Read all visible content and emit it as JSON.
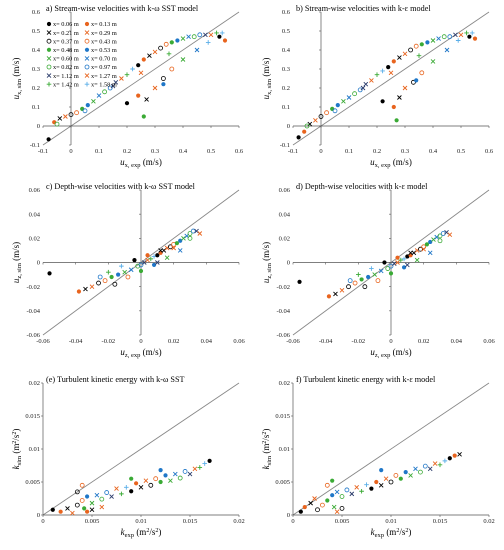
{
  "series_legend": [
    {
      "label": "x= 0.06 m",
      "marker": "dot",
      "color": "#000000"
    },
    {
      "label": "x= 0.13 m",
      "marker": "dot",
      "color": "#e8641e"
    },
    {
      "label": "x= 0.21 m",
      "marker": "x",
      "color": "#000000"
    },
    {
      "label": "x= 0.29 m",
      "marker": "x",
      "color": "#e8641e"
    },
    {
      "label": "x= 0.37 m",
      "marker": "ring",
      "color": "#000000"
    },
    {
      "label": "x= 0.43 m",
      "marker": "ring",
      "color": "#e8641e"
    },
    {
      "label": "x= 0.48 m",
      "marker": "dot",
      "color": "#3aaa35"
    },
    {
      "label": "x= 0.53 m",
      "marker": "dot",
      "color": "#1f77c8"
    },
    {
      "label": "x= 0.60 m",
      "marker": "x",
      "color": "#3aaa35"
    },
    {
      "label": "x= 0.70 m",
      "marker": "x",
      "color": "#1f77c8"
    },
    {
      "label": "x= 0.82 m",
      "marker": "ring",
      "color": "#3aaa35"
    },
    {
      "label": "x= 0.97 m",
      "marker": "ring",
      "color": "#1f77c8"
    },
    {
      "label": "x= 1.12 m",
      "marker": "x",
      "color": "#2a3b6b"
    },
    {
      "label": "x= 1.27 m",
      "marker": "x",
      "color": "#e8641e"
    },
    {
      "label": "x= 1.42 m",
      "marker": "plus",
      "color": "#3aaa35"
    },
    {
      "label": "x= 1.58 m",
      "marker": "plus",
      "color": "#5aaee8"
    }
  ],
  "chart_data": [
    {
      "type": "scatter",
      "title": "a) Stream-wise velocities with k-ω SST model",
      "xlabel": "ux, exp (m/s)",
      "ylabel": "ux, sim (m/s)",
      "xlim": [
        -0.1,
        0.6
      ],
      "ylim": [
        -0.1,
        0.6
      ],
      "xticks": [
        "-0.1",
        "0",
        "0.1",
        "0.2",
        "0.3",
        "0.4",
        "0.5",
        "0.6"
      ],
      "yticks": [
        "-0.1",
        "0",
        "0.1",
        "0.2",
        "0.3",
        "0.4",
        "0.5",
        "0.6"
      ],
      "reference_line": "1:1",
      "points": [
        [
          -0.08,
          -0.07
        ],
        [
          -0.06,
          0.02
        ],
        [
          -0.04,
          0.04
        ],
        [
          -0.02,
          0.05
        ],
        [
          0.0,
          0.06
        ],
        [
          0.02,
          0.07
        ],
        [
          0.04,
          0.09
        ],
        [
          0.06,
          0.11
        ],
        [
          0.08,
          0.13
        ],
        [
          0.1,
          0.16
        ],
        [
          0.12,
          0.18
        ],
        [
          0.14,
          0.2
        ],
        [
          0.16,
          0.23
        ],
        [
          0.18,
          0.25
        ],
        [
          0.2,
          0.27
        ],
        [
          0.22,
          0.3
        ],
        [
          0.24,
          0.32
        ],
        [
          0.26,
          0.35
        ],
        [
          0.28,
          0.37
        ],
        [
          0.3,
          0.39
        ],
        [
          0.32,
          0.41
        ],
        [
          0.34,
          0.43
        ],
        [
          0.36,
          0.44
        ],
        [
          0.38,
          0.45
        ],
        [
          0.4,
          0.46
        ],
        [
          0.42,
          0.47
        ],
        [
          0.44,
          0.47
        ],
        [
          0.46,
          0.48
        ],
        [
          0.48,
          0.48
        ],
        [
          0.5,
          0.48
        ],
        [
          0.52,
          0.49
        ],
        [
          0.54,
          0.49
        ],
        [
          0.2,
          0.12
        ],
        [
          0.24,
          0.16
        ],
        [
          0.27,
          0.14
        ],
        [
          0.3,
          0.2
        ],
        [
          0.33,
          0.25
        ],
        [
          0.36,
          0.3
        ],
        [
          0.26,
          0.05
        ],
        [
          0.33,
          0.22
        ],
        [
          0.4,
          0.35
        ],
        [
          0.45,
          0.4
        ],
        [
          -0.05,
          0.01
        ],
        [
          0.05,
          0.08
        ],
        [
          0.15,
          0.21
        ],
        [
          0.25,
          0.28
        ],
        [
          0.35,
          0.38
        ],
        [
          0.49,
          0.44
        ],
        [
          0.53,
          0.47
        ],
        [
          0.55,
          0.45
        ]
      ]
    },
    {
      "type": "scatter",
      "title": "b) Stream-wise velocities with k-ε model",
      "xlabel": "ux, exp (m/s)",
      "ylabel": "ux, sim (m/s)",
      "xlim": [
        -0.1,
        0.6
      ],
      "ylim": [
        -0.1,
        0.6
      ],
      "xticks": [
        "-0.1",
        "0",
        "0.1",
        "0.2",
        "0.3",
        "0.4",
        "0.5",
        "0.6"
      ],
      "yticks": [
        "-0.1",
        "0",
        "0.1",
        "0.2",
        "0.3",
        "0.4",
        "0.5",
        "0.6"
      ],
      "reference_line": "1:1",
      "points": [
        [
          -0.08,
          -0.06
        ],
        [
          -0.06,
          -0.03
        ],
        [
          -0.04,
          0.01
        ],
        [
          -0.02,
          0.03
        ],
        [
          0.0,
          0.05
        ],
        [
          0.02,
          0.07
        ],
        [
          0.04,
          0.09
        ],
        [
          0.06,
          0.11
        ],
        [
          0.08,
          0.13
        ],
        [
          0.1,
          0.15
        ],
        [
          0.12,
          0.17
        ],
        [
          0.14,
          0.19
        ],
        [
          0.16,
          0.22
        ],
        [
          0.18,
          0.24
        ],
        [
          0.2,
          0.27
        ],
        [
          0.22,
          0.29
        ],
        [
          0.24,
          0.31
        ],
        [
          0.26,
          0.34
        ],
        [
          0.28,
          0.36
        ],
        [
          0.3,
          0.38
        ],
        [
          0.32,
          0.4
        ],
        [
          0.34,
          0.42
        ],
        [
          0.36,
          0.43
        ],
        [
          0.38,
          0.44
        ],
        [
          0.4,
          0.45
        ],
        [
          0.42,
          0.46
        ],
        [
          0.44,
          0.47
        ],
        [
          0.46,
          0.47
        ],
        [
          0.48,
          0.48
        ],
        [
          0.5,
          0.48
        ],
        [
          0.52,
          0.49
        ],
        [
          0.54,
          0.49
        ],
        [
          0.22,
          0.13
        ],
        [
          0.26,
          0.1
        ],
        [
          0.28,
          0.15
        ],
        [
          0.3,
          0.2
        ],
        [
          0.33,
          0.23
        ],
        [
          0.36,
          0.28
        ],
        [
          0.27,
          0.03
        ],
        [
          0.34,
          0.24
        ],
        [
          0.4,
          0.34
        ],
        [
          0.45,
          0.4
        ],
        [
          -0.05,
          0.0
        ],
        [
          0.05,
          0.08
        ],
        [
          0.15,
          0.2
        ],
        [
          0.25,
          0.28
        ],
        [
          0.35,
          0.37
        ],
        [
          0.49,
          0.45
        ],
        [
          0.53,
          0.47
        ],
        [
          0.55,
          0.46
        ]
      ]
    },
    {
      "type": "scatter",
      "title": "c) Depth-wise velocities with k-ω SST model",
      "xlabel": "uz, exp (m/s)",
      "ylabel": "uz, sim (m/s)",
      "xlim": [
        -0.06,
        0.06
      ],
      "ylim": [
        -0.06,
        0.06
      ],
      "xticks": [
        "-0.06",
        "-0.04",
        "-0.02",
        "0",
        "0.02",
        "0.04",
        "0.06"
      ],
      "yticks": [
        "-0.06",
        "-0.04",
        "-0.02",
        "0",
        "0.02",
        "0.04",
        "0.06"
      ],
      "reference_line": "1:1",
      "points": [
        [
          -0.056,
          -0.009
        ],
        [
          -0.038,
          -0.024
        ],
        [
          -0.034,
          -0.022
        ],
        [
          -0.03,
          -0.02
        ],
        [
          -0.026,
          -0.017
        ],
        [
          -0.022,
          -0.015
        ],
        [
          -0.018,
          -0.012
        ],
        [
          -0.014,
          -0.01
        ],
        [
          -0.01,
          -0.008
        ],
        [
          -0.006,
          -0.006
        ],
        [
          -0.002,
          -0.003
        ],
        [
          0.0,
          -0.002
        ],
        [
          0.002,
          0.0
        ],
        [
          0.004,
          0.002
        ],
        [
          0.006,
          0.003
        ],
        [
          0.008,
          0.005
        ],
        [
          0.01,
          0.006
        ],
        [
          0.012,
          0.008
        ],
        [
          0.014,
          0.01
        ],
        [
          0.016,
          0.012
        ],
        [
          0.018,
          0.013
        ],
        [
          0.02,
          0.015
        ],
        [
          0.022,
          0.016
        ],
        [
          0.024,
          0.018
        ],
        [
          0.026,
          0.02
        ],
        [
          0.028,
          0.022
        ],
        [
          0.03,
          0.024
        ],
        [
          0.032,
          0.026
        ],
        [
          0.034,
          0.026
        ],
        [
          0.036,
          0.024
        ],
        [
          -0.02,
          -0.008
        ],
        [
          -0.012,
          -0.003
        ],
        [
          -0.004,
          0.002
        ],
        [
          0.004,
          0.006
        ],
        [
          0.012,
          0.01
        ],
        [
          0.02,
          0.012
        ],
        [
          -0.016,
          -0.018
        ],
        [
          -0.008,
          -0.012
        ],
        [
          0.0,
          -0.007
        ],
        [
          0.008,
          -0.002
        ],
        [
          0.016,
          0.004
        ],
        [
          0.024,
          0.01
        ],
        [
          0.03,
          0.02
        ],
        [
          -0.025,
          -0.012
        ],
        [
          0.01,
          0.0
        ]
      ]
    },
    {
      "type": "scatter",
      "title": "d) Depth-wise velocities with k-ε model",
      "xlabel": "uz, exp (m/s)",
      "ylabel": "uz, sim (m/s)",
      "xlim": [
        -0.06,
        0.06
      ],
      "ylim": [
        -0.06,
        0.06
      ],
      "xticks": [
        "-0.06",
        "-0.04",
        "-0.02",
        "0",
        "0.02",
        "0.04",
        "0.06"
      ],
      "yticks": [
        "-0.06",
        "-0.04",
        "-0.02",
        "0",
        "0.02",
        "0.04",
        "0.06"
      ],
      "reference_line": "1:1",
      "points": [
        [
          -0.056,
          -0.016
        ],
        [
          -0.038,
          -0.028
        ],
        [
          -0.034,
          -0.026
        ],
        [
          -0.03,
          -0.023
        ],
        [
          -0.026,
          -0.02
        ],
        [
          -0.022,
          -0.017
        ],
        [
          -0.018,
          -0.014
        ],
        [
          -0.014,
          -0.012
        ],
        [
          -0.01,
          -0.01
        ],
        [
          -0.006,
          -0.007
        ],
        [
          -0.002,
          -0.005
        ],
        [
          0.0,
          -0.003
        ],
        [
          0.002,
          -0.001
        ],
        [
          0.004,
          0.0
        ],
        [
          0.006,
          0.002
        ],
        [
          0.008,
          0.003
        ],
        [
          0.01,
          0.005
        ],
        [
          0.012,
          0.006
        ],
        [
          0.014,
          0.008
        ],
        [
          0.016,
          0.01
        ],
        [
          0.018,
          0.011
        ],
        [
          0.02,
          0.013
        ],
        [
          0.022,
          0.015
        ],
        [
          0.024,
          0.017
        ],
        [
          0.026,
          0.019
        ],
        [
          0.028,
          0.021
        ],
        [
          0.03,
          0.022
        ],
        [
          0.032,
          0.024
        ],
        [
          0.034,
          0.025
        ],
        [
          0.036,
          0.023
        ],
        [
          -0.02,
          -0.01
        ],
        [
          -0.012,
          -0.005
        ],
        [
          -0.004,
          0.0
        ],
        [
          0.004,
          0.004
        ],
        [
          0.012,
          0.008
        ],
        [
          0.02,
          0.011
        ],
        [
          -0.016,
          -0.02
        ],
        [
          -0.008,
          -0.015
        ],
        [
          0.0,
          -0.009
        ],
        [
          0.008,
          -0.004
        ],
        [
          0.016,
          0.002
        ],
        [
          0.024,
          0.008
        ],
        [
          0.03,
          0.018
        ],
        [
          -0.025,
          -0.015
        ],
        [
          0.01,
          -0.002
        ]
      ]
    },
    {
      "type": "scatter",
      "title": "(e) Turbulent kinetic energy with k-ω SST",
      "xlabel": "kexp (m2/s2)",
      "ylabel": "ksim (m2/s2)",
      "xlim": [
        0,
        0.02
      ],
      "ylim": [
        0,
        0.02
      ],
      "xticks": [
        "0",
        "0.005",
        "0.01",
        "0.015",
        "0.02"
      ],
      "yticks": [
        "0",
        "0.005",
        "0.01",
        "0.015",
        "0.02"
      ],
      "reference_line": "1:1",
      "points": [
        [
          0.001,
          0.0008
        ],
        [
          0.0018,
          0.0005
        ],
        [
          0.0025,
          0.001
        ],
        [
          0.003,
          0.0003
        ],
        [
          0.0035,
          0.0015
        ],
        [
          0.004,
          0.0022
        ],
        [
          0.0042,
          0.001
        ],
        [
          0.0045,
          0.0028
        ],
        [
          0.005,
          0.0018
        ],
        [
          0.0055,
          0.003
        ],
        [
          0.006,
          0.0024
        ],
        [
          0.0065,
          0.0034
        ],
        [
          0.007,
          0.0028
        ],
        [
          0.0075,
          0.004
        ],
        [
          0.008,
          0.0032
        ],
        [
          0.0085,
          0.0042
        ],
        [
          0.009,
          0.0036
        ],
        [
          0.0095,
          0.0048
        ],
        [
          0.01,
          0.0042
        ],
        [
          0.0105,
          0.0052
        ],
        [
          0.011,
          0.0045
        ],
        [
          0.0115,
          0.0055
        ],
        [
          0.012,
          0.005
        ],
        [
          0.0125,
          0.006
        ],
        [
          0.013,
          0.0052
        ],
        [
          0.0135,
          0.0062
        ],
        [
          0.014,
          0.0056
        ],
        [
          0.0145,
          0.0066
        ],
        [
          0.015,
          0.0062
        ],
        [
          0.0155,
          0.007
        ],
        [
          0.016,
          0.0072
        ],
        [
          0.0165,
          0.0078
        ],
        [
          0.017,
          0.0082
        ],
        [
          0.0045,
          0.0005
        ],
        [
          0.005,
          0.0008
        ],
        [
          0.006,
          0.0012
        ],
        [
          0.0035,
          0.0035
        ],
        [
          0.004,
          0.0045
        ],
        [
          0.009,
          0.0055
        ],
        [
          0.012,
          0.0068
        ]
      ]
    },
    {
      "type": "scatter",
      "title": "f) Turbulent kinetic energy with k-ε model",
      "xlabel": "kexp (m2/s2)",
      "ylabel": "ksim (m2/s2)",
      "xlim": [
        0,
        0.02
      ],
      "ylim": [
        0,
        0.02
      ],
      "xticks": [
        "0",
        "0.005",
        "0.01",
        "0.015",
        "0.02"
      ],
      "yticks": [
        "0",
        "0.005",
        "0.01",
        "0.015",
        "0.02"
      ],
      "reference_line": "1:1",
      "points": [
        [
          0.0008,
          0.0005
        ],
        [
          0.0012,
          0.0012
        ],
        [
          0.0018,
          0.0018
        ],
        [
          0.0022,
          0.0025
        ],
        [
          0.0025,
          0.0008
        ],
        [
          0.003,
          0.0015
        ],
        [
          0.0035,
          0.0022
        ],
        [
          0.004,
          0.003
        ],
        [
          0.0042,
          0.0012
        ],
        [
          0.0045,
          0.0035
        ],
        [
          0.005,
          0.0028
        ],
        [
          0.0055,
          0.0038
        ],
        [
          0.006,
          0.0032
        ],
        [
          0.0065,
          0.0042
        ],
        [
          0.007,
          0.0036
        ],
        [
          0.0075,
          0.0046
        ],
        [
          0.008,
          0.004
        ],
        [
          0.0085,
          0.005
        ],
        [
          0.009,
          0.0045
        ],
        [
          0.0095,
          0.0055
        ],
        [
          0.01,
          0.005
        ],
        [
          0.0105,
          0.006
        ],
        [
          0.011,
          0.0055
        ],
        [
          0.0115,
          0.0065
        ],
        [
          0.012,
          0.006
        ],
        [
          0.0125,
          0.007
        ],
        [
          0.013,
          0.0065
        ],
        [
          0.0135,
          0.0074
        ],
        [
          0.014,
          0.007
        ],
        [
          0.0145,
          0.0078
        ],
        [
          0.015,
          0.0076
        ],
        [
          0.0155,
          0.0082
        ],
        [
          0.016,
          0.0086
        ],
        [
          0.0165,
          0.009
        ],
        [
          0.017,
          0.0092
        ],
        [
          0.0045,
          0.0005
        ],
        [
          0.005,
          0.001
        ],
        [
          0.0035,
          0.0045
        ],
        [
          0.004,
          0.0052
        ],
        [
          0.009,
          0.0068
        ]
      ]
    }
  ]
}
